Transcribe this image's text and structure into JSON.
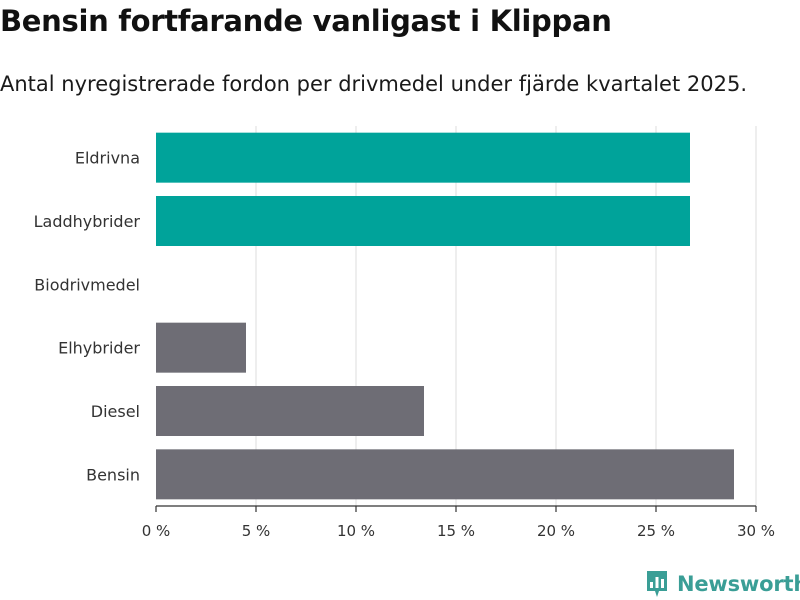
{
  "title": "Bensin fortfarande vanligast i Klippan",
  "subtitle": "Antal nyregistrerade fordon per drivmedel under fjärde kvartalet 2025.",
  "brand": {
    "name": "Newsworthy",
    "color": "#3a9e96"
  },
  "colors": {
    "highlight": "#00a39a",
    "default": "#6e6d75",
    "grid": "#dddddd",
    "axis": "#333333"
  },
  "chart_data": {
    "type": "bar",
    "orientation": "horizontal",
    "categories": [
      "Eldrivna",
      "Laddhybrider",
      "Biodrivmedel",
      "Elhybrider",
      "Diesel",
      "Bensin"
    ],
    "values": [
      26.7,
      26.7,
      0,
      4.5,
      13.4,
      28.9
    ],
    "highlighted": [
      true,
      true,
      false,
      false,
      false,
      false
    ],
    "unit": "%",
    "xlim": [
      0,
      30
    ],
    "xticks": [
      0,
      5,
      10,
      15,
      20,
      25,
      30
    ],
    "xtick_labels": [
      "0 %",
      "5 %",
      "10 %",
      "15 %",
      "20 %",
      "25 %",
      "30 %"
    ],
    "grid": true,
    "xlabel": "",
    "ylabel": ""
  }
}
